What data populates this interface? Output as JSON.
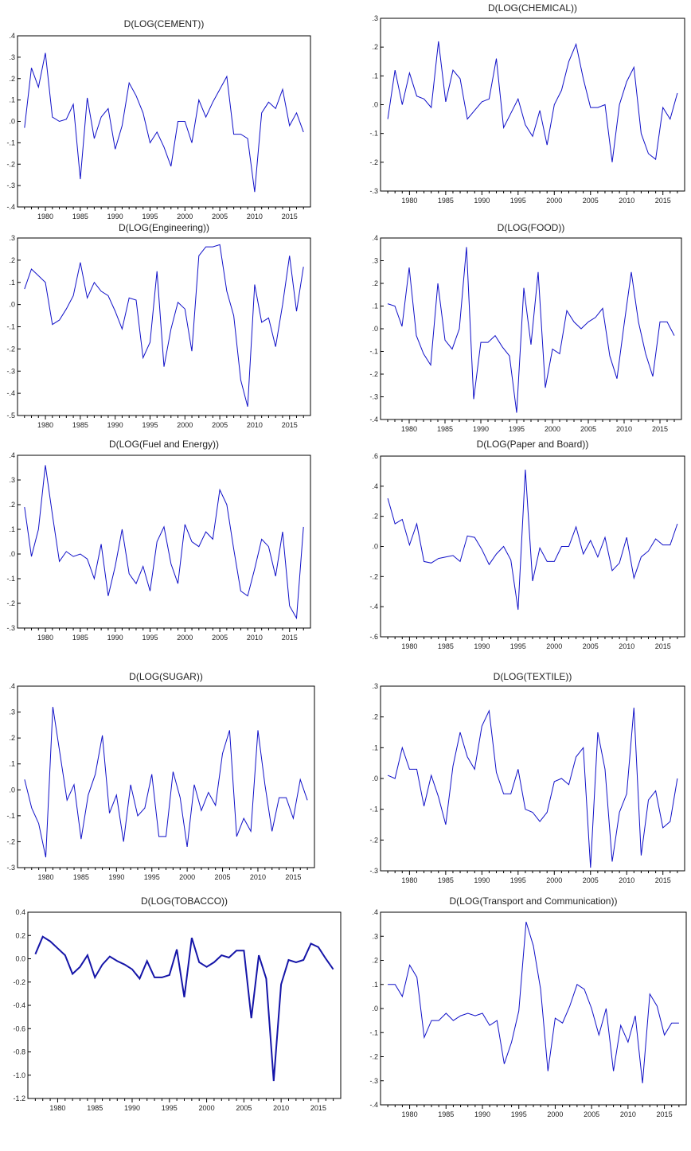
{
  "chart_data": [
    {
      "type": "line",
      "title": "D(LOG(CEMENT))",
      "ylim": [
        -0.4,
        0.4
      ],
      "yticks": [
        ".4",
        ".3",
        ".2",
        ".1",
        ".0",
        "-.1",
        "-.2",
        "-.3",
        "-.4"
      ],
      "xticks": [
        "1980",
        "1985",
        "1990",
        "1995",
        "2000",
        "2005",
        "2010",
        "2015"
      ],
      "x": [
        1977,
        1978,
        1979,
        1980,
        1981,
        1982,
        1983,
        1984,
        1985,
        1986,
        1987,
        1988,
        1989,
        1990,
        1991,
        1992,
        1993,
        1994,
        1995,
        1996,
        1997,
        1998,
        1999,
        2000,
        2001,
        2002,
        2003,
        2004,
        2005,
        2006,
        2007,
        2008,
        2009,
        2010,
        2011,
        2012,
        2013,
        2014,
        2015,
        2016,
        2017
      ],
      "values": [
        -0.03,
        0.25,
        0.16,
        0.32,
        0.02,
        0.0,
        0.01,
        0.08,
        -0.27,
        0.11,
        -0.08,
        0.02,
        0.06,
        -0.13,
        -0.02,
        0.18,
        0.12,
        0.04,
        -0.1,
        -0.05,
        -0.12,
        -0.21,
        0.0,
        0.0,
        -0.1,
        0.1,
        0.02,
        0.09,
        0.15,
        0.21,
        -0.06,
        -0.06,
        -0.08,
        -0.33,
        0.04,
        0.09,
        0.06,
        0.15,
        -0.02,
        0.04,
        -0.05
      ]
    },
    {
      "type": "line",
      "title": "D(LOG(CHEMICAL))",
      "ylim": [
        -0.3,
        0.3
      ],
      "yticks": [
        ".3",
        ".2",
        ".1",
        ".0",
        "-.1",
        "-.2",
        "-.3"
      ],
      "xticks": [
        "1980",
        "1985",
        "1990",
        "1995",
        "2000",
        "2005",
        "2010",
        "2015"
      ],
      "x": [
        1977,
        1978,
        1979,
        1980,
        1981,
        1982,
        1983,
        1984,
        1985,
        1986,
        1987,
        1988,
        1989,
        1990,
        1991,
        1992,
        1993,
        1994,
        1995,
        1996,
        1997,
        1998,
        1999,
        2000,
        2001,
        2002,
        2003,
        2004,
        2005,
        2006,
        2007,
        2008,
        2009,
        2010,
        2011,
        2012,
        2013,
        2014,
        2015,
        2016,
        2017
      ],
      "values": [
        -0.05,
        0.12,
        0.0,
        0.11,
        0.03,
        0.02,
        -0.01,
        0.22,
        0.01,
        0.12,
        0.09,
        -0.05,
        -0.02,
        0.01,
        0.02,
        0.16,
        -0.08,
        -0.03,
        0.02,
        -0.07,
        -0.11,
        -0.02,
        -0.14,
        0.0,
        0.05,
        0.15,
        0.21,
        0.09,
        -0.01,
        -0.01,
        0.0,
        -0.2,
        0.0,
        0.08,
        0.13,
        -0.1,
        -0.17,
        -0.19,
        -0.01,
        -0.05,
        0.04
      ]
    },
    {
      "type": "line",
      "title": "D(LOG(Engineering))",
      "ylim": [
        -0.5,
        0.3
      ],
      "yticks": [
        ".3",
        ".2",
        ".1",
        ".0",
        "-.1",
        "-.2",
        "-.3",
        "-.4",
        "-.5"
      ],
      "xticks": [
        "1980",
        "1985",
        "1990",
        "1995",
        "2000",
        "2005",
        "2010",
        "2015"
      ],
      "x": [
        1977,
        1978,
        1979,
        1980,
        1981,
        1982,
        1983,
        1984,
        1985,
        1986,
        1987,
        1988,
        1989,
        1990,
        1991,
        1992,
        1993,
        1994,
        1995,
        1996,
        1997,
        1998,
        1999,
        2000,
        2001,
        2002,
        2003,
        2004,
        2005,
        2006,
        2007,
        2008,
        2009,
        2010,
        2011,
        2012,
        2013,
        2014,
        2015,
        2016,
        2017
      ],
      "values": [
        0.07,
        0.16,
        0.13,
        0.1,
        -0.09,
        -0.07,
        -0.02,
        0.04,
        0.19,
        0.03,
        0.1,
        0.06,
        0.04,
        -0.03,
        -0.11,
        0.03,
        0.02,
        -0.24,
        -0.17,
        0.15,
        -0.28,
        -0.11,
        0.01,
        -0.02,
        -0.21,
        0.22,
        0.26,
        0.26,
        0.27,
        0.06,
        -0.05,
        -0.34,
        -0.46,
        0.09,
        -0.08,
        -0.06,
        -0.19,
        0.0,
        0.22,
        -0.03,
        0.17
      ]
    },
    {
      "type": "line",
      "title": "D(LOG(FOOD))",
      "ylim": [
        -0.4,
        0.4
      ],
      "yticks": [
        ".4",
        ".3",
        ".2",
        ".1",
        ".0",
        "-.1",
        "-.2",
        "-.3",
        "-.4"
      ],
      "xticks": [
        "1980",
        "1985",
        "1990",
        "1995",
        "2000",
        "2005",
        "2010",
        "2015"
      ],
      "x": [
        1977,
        1978,
        1979,
        1980,
        1981,
        1982,
        1983,
        1984,
        1985,
        1986,
        1987,
        1988,
        1989,
        1990,
        1991,
        1992,
        1993,
        1994,
        1995,
        1996,
        1997,
        1998,
        1999,
        2000,
        2001,
        2002,
        2003,
        2004,
        2005,
        2006,
        2007,
        2008,
        2009,
        2010,
        2011,
        2012,
        2013,
        2014,
        2015,
        2016,
        2017
      ],
      "values": [
        0.11,
        0.1,
        0.01,
        0.27,
        -0.03,
        -0.11,
        -0.16,
        0.2,
        -0.05,
        -0.09,
        0.0,
        0.36,
        -0.31,
        -0.06,
        -0.06,
        -0.03,
        -0.08,
        -0.12,
        -0.37,
        0.18,
        -0.07,
        0.25,
        -0.26,
        -0.09,
        -0.11,
        0.08,
        0.03,
        0.0,
        0.03,
        0.05,
        0.09,
        -0.12,
        -0.22,
        0.02,
        0.25,
        0.03,
        -0.11,
        -0.21,
        0.03,
        0.03,
        -0.03
      ]
    },
    {
      "type": "line",
      "title": "D(LOG(Fuel and Energy))",
      "ylim": [
        -0.3,
        0.4
      ],
      "yticks": [
        ".4",
        ".3",
        ".2",
        ".1",
        ".0",
        "-.1",
        "-.2",
        "-.3"
      ],
      "xticks": [
        "1980",
        "1985",
        "1990",
        "1995",
        "2000",
        "2005",
        "2010",
        "2015"
      ],
      "x": [
        1977,
        1978,
        1979,
        1980,
        1981,
        1982,
        1983,
        1984,
        1985,
        1986,
        1987,
        1988,
        1989,
        1990,
        1991,
        1992,
        1993,
        1994,
        1995,
        1996,
        1997,
        1998,
        1999,
        2000,
        2001,
        2002,
        2003,
        2004,
        2005,
        2006,
        2007,
        2008,
        2009,
        2010,
        2011,
        2012,
        2013,
        2014,
        2015,
        2016,
        2017
      ],
      "values": [
        0.19,
        -0.01,
        0.1,
        0.36,
        0.16,
        -0.03,
        0.01,
        -0.01,
        0.0,
        -0.02,
        -0.1,
        0.04,
        -0.17,
        -0.05,
        0.1,
        -0.08,
        -0.12,
        -0.05,
        -0.15,
        0.05,
        0.11,
        -0.04,
        -0.12,
        0.12,
        0.05,
        0.03,
        0.09,
        0.06,
        0.26,
        0.2,
        0.02,
        -0.15,
        -0.17,
        -0.06,
        0.06,
        0.03,
        -0.09,
        0.09,
        -0.21,
        -0.26,
        0.11
      ]
    },
    {
      "type": "line",
      "title": "D(LOG(Paper and Board))",
      "ylim": [
        -0.6,
        0.6
      ],
      "yticks": [
        ".6",
        ".4",
        ".2",
        ".0",
        "-.2",
        "-.4",
        "-.6"
      ],
      "xticks": [
        "1980",
        "1985",
        "1990",
        "1995",
        "2000",
        "2005",
        "2010",
        "2015"
      ],
      "x": [
        1977,
        1978,
        1979,
        1980,
        1981,
        1982,
        1983,
        1984,
        1985,
        1986,
        1987,
        1988,
        1989,
        1990,
        1991,
        1992,
        1993,
        1994,
        1995,
        1996,
        1997,
        1998,
        1999,
        2000,
        2001,
        2002,
        2003,
        2004,
        2005,
        2006,
        2007,
        2008,
        2009,
        2010,
        2011,
        2012,
        2013,
        2014,
        2015,
        2016,
        2017
      ],
      "values": [
        0.32,
        0.15,
        0.18,
        0.01,
        0.15,
        -0.1,
        -0.11,
        -0.08,
        -0.07,
        -0.06,
        -0.1,
        0.07,
        0.06,
        -0.02,
        -0.12,
        -0.05,
        0.0,
        -0.09,
        -0.42,
        0.51,
        -0.23,
        -0.01,
        -0.1,
        -0.1,
        0.0,
        0.0,
        0.13,
        -0.05,
        0.04,
        -0.07,
        0.06,
        -0.16,
        -0.11,
        0.06,
        -0.21,
        -0.07,
        -0.03,
        0.05,
        0.01,
        0.01,
        0.15
      ]
    },
    {
      "type": "line",
      "title": "D(LOG(SUGAR))",
      "ylim": [
        -0.3,
        0.4
      ],
      "yticks": [
        ".4",
        ".3",
        ".2",
        ".1",
        ".0",
        "-.1",
        "-.2",
        "-.3"
      ],
      "xticks": [
        "1980",
        "1985",
        "1990",
        "1995",
        "2000",
        "2005",
        "2010",
        "2015"
      ],
      "x": [
        1977,
        1978,
        1979,
        1980,
        1981,
        1982,
        1983,
        1984,
        1985,
        1986,
        1987,
        1988,
        1989,
        1990,
        1991,
        1992,
        1993,
        1994,
        1995,
        1996,
        1997,
        1998,
        1999,
        2000,
        2001,
        2002,
        2003,
        2004,
        2005,
        2006,
        2007,
        2008,
        2009,
        2010,
        2011,
        2012,
        2013,
        2014,
        2015,
        2016,
        2017
      ],
      "values": [
        0.04,
        -0.07,
        -0.13,
        -0.26,
        0.32,
        0.14,
        -0.04,
        0.02,
        -0.19,
        -0.02,
        0.06,
        0.21,
        -0.09,
        -0.02,
        -0.2,
        0.02,
        -0.1,
        -0.07,
        0.06,
        -0.18,
        -0.18,
        0.07,
        -0.03,
        -0.22,
        0.02,
        -0.08,
        -0.01,
        -0.06,
        0.14,
        0.23,
        -0.18,
        -0.11,
        -0.16,
        0.23,
        0.02,
        -0.16,
        -0.03,
        -0.03,
        -0.11,
        0.04,
        -0.04
      ]
    },
    {
      "type": "line",
      "title": "D(LOG(TEXTILE))",
      "ylim": [
        -0.3,
        0.3
      ],
      "yticks": [
        ".3",
        ".2",
        ".1",
        ".0",
        "-.1",
        "-.2",
        "-.3"
      ],
      "xticks": [
        "1980",
        "1985",
        "1990",
        "1995",
        "2000",
        "2005",
        "2010",
        "2015"
      ],
      "x": [
        1977,
        1978,
        1979,
        1980,
        1981,
        1982,
        1983,
        1984,
        1985,
        1986,
        1987,
        1988,
        1989,
        1990,
        1991,
        1992,
        1993,
        1994,
        1995,
        1996,
        1997,
        1998,
        1999,
        2000,
        2001,
        2002,
        2003,
        2004,
        2005,
        2006,
        2007,
        2008,
        2009,
        2010,
        2011,
        2012,
        2013,
        2014,
        2015,
        2016,
        2017
      ],
      "values": [
        0.01,
        0.0,
        0.1,
        0.03,
        0.03,
        -0.09,
        0.01,
        -0.06,
        -0.15,
        0.04,
        0.15,
        0.07,
        0.03,
        0.17,
        0.22,
        0.02,
        -0.05,
        -0.05,
        0.03,
        -0.1,
        -0.11,
        -0.14,
        -0.11,
        -0.01,
        0.0,
        -0.02,
        0.07,
        0.1,
        -0.29,
        0.15,
        0.03,
        -0.27,
        -0.11,
        -0.05,
        0.23,
        -0.25,
        -0.07,
        -0.04,
        -0.16,
        -0.14,
        0.0
      ]
    },
    {
      "type": "line",
      "title": "D(LOG(TOBACCO))",
      "ylim": [
        -1.2,
        0.4
      ],
      "yticks": [
        "0.4",
        "0.2",
        "0.0",
        "-0.2",
        "-0.4",
        "-0.6",
        "-0.8",
        "-1.0",
        "-1.2"
      ],
      "xticks": [
        "1980",
        "1985",
        "1990",
        "1995",
        "2000",
        "2005",
        "2010",
        "2015"
      ],
      "x": [
        1977,
        1978,
        1979,
        1980,
        1981,
        1982,
        1983,
        1984,
        1985,
        1986,
        1987,
        1988,
        1989,
        1990,
        1991,
        1992,
        1993,
        1994,
        1995,
        1996,
        1997,
        1998,
        1999,
        2000,
        2001,
        2002,
        2003,
        2004,
        2005,
        2006,
        2007,
        2008,
        2009,
        2010,
        2011,
        2012,
        2013,
        2014,
        2015,
        2016,
        2017
      ],
      "values": [
        0.04,
        0.19,
        0.15,
        0.09,
        0.03,
        -0.13,
        -0.07,
        0.03,
        -0.16,
        -0.05,
        0.02,
        -0.02,
        -0.05,
        -0.09,
        -0.17,
        -0.02,
        -0.16,
        -0.16,
        -0.14,
        0.08,
        -0.33,
        0.18,
        -0.03,
        -0.07,
        -0.03,
        0.03,
        0.01,
        0.07,
        0.07,
        -0.51,
        0.03,
        -0.17,
        -1.05,
        -0.22,
        -0.01,
        -0.03,
        -0.01,
        0.13,
        0.1,
        0.0,
        -0.09
      ]
    },
    {
      "type": "line",
      "title": "D(LOG(Transport and Communication))",
      "ylim": [
        -0.4,
        0.4
      ],
      "yticks": [
        ".4",
        ".3",
        ".2",
        ".1",
        ".0",
        "-.1",
        "-.2",
        "-.3",
        "-.4"
      ],
      "xticks": [
        "1980",
        "1985",
        "1990",
        "1995",
        "2000",
        "2005",
        "2010",
        "2015"
      ],
      "x": [
        1977,
        1978,
        1979,
        1980,
        1981,
        1982,
        1983,
        1984,
        1985,
        1986,
        1987,
        1988,
        1989,
        1990,
        1991,
        1992,
        1993,
        1994,
        1995,
        1996,
        1997,
        1998,
        1999,
        2000,
        2001,
        2002,
        2003,
        2004,
        2005,
        2006,
        2007,
        2008,
        2009,
        2010,
        2011,
        2012,
        2013,
        2014,
        2015,
        2016,
        2017
      ],
      "values": [
        0.1,
        0.1,
        0.05,
        0.18,
        0.13,
        -0.12,
        -0.05,
        -0.05,
        -0.02,
        -0.05,
        -0.03,
        -0.02,
        -0.03,
        -0.02,
        -0.07,
        -0.05,
        -0.23,
        -0.14,
        -0.01,
        0.36,
        0.26,
        0.08,
        -0.26,
        -0.04,
        -0.06,
        0.01,
        0.1,
        0.08,
        0.0,
        -0.11,
        0.0,
        -0.26,
        -0.07,
        -0.14,
        -0.03,
        -0.31,
        0.06,
        0.01,
        -0.11,
        -0.06,
        -0.06
      ]
    }
  ]
}
